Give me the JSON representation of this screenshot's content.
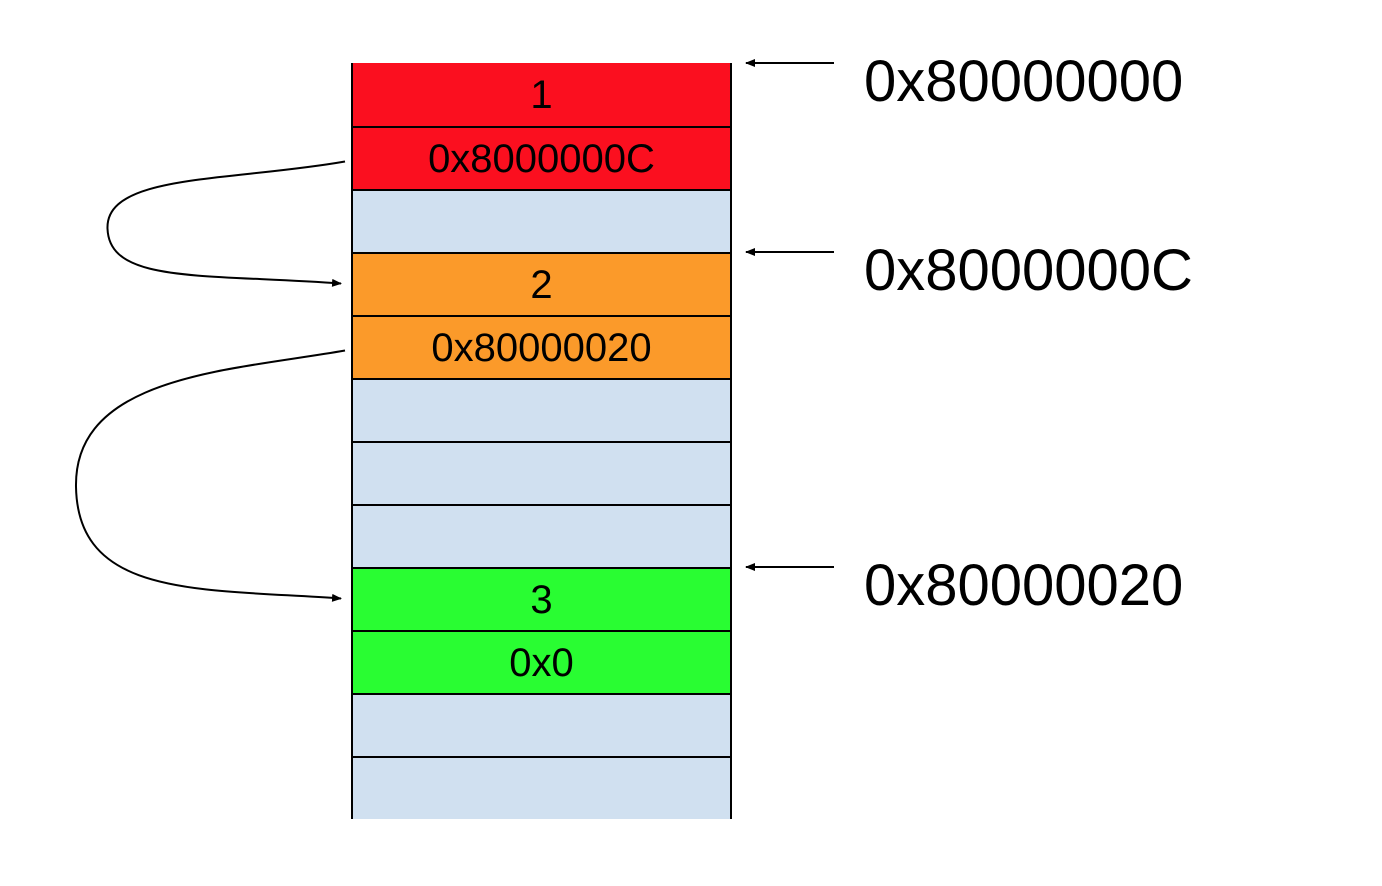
{
  "memory": {
    "cells": [
      {
        "text": "1",
        "color": "#fb0f1f"
      },
      {
        "text": "0x8000000C",
        "color": "#fb0f1f"
      },
      {
        "text": "",
        "color": "#d0e0f0"
      },
      {
        "text": "2",
        "color": "#fb9a2a"
      },
      {
        "text": "0x80000020",
        "color": "#fb9a2a"
      },
      {
        "text": "",
        "color": "#d0e0f0"
      },
      {
        "text": "",
        "color": "#d0e0f0"
      },
      {
        "text": "",
        "color": "#d0e0f0"
      },
      {
        "text": "3",
        "color": "#29fd32"
      },
      {
        "text": "0x0",
        "color": "#29fd32"
      },
      {
        "text": "",
        "color": "#d0e0f0"
      },
      {
        "text": "",
        "color": "#d0e0f0"
      }
    ]
  },
  "address_labels": [
    {
      "text": "0x80000000",
      "cell_index": 0
    },
    {
      "text": "0x8000000C",
      "cell_index": 3
    },
    {
      "text": "0x80000020",
      "cell_index": 8
    }
  ],
  "links": [
    {
      "from_cell": 1,
      "to_cell": 3
    },
    {
      "from_cell": 4,
      "to_cell": 8
    }
  ]
}
